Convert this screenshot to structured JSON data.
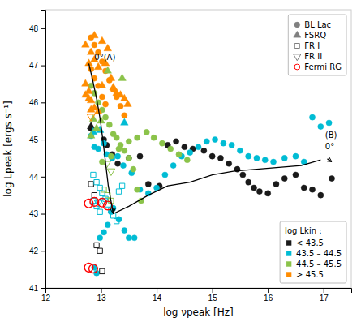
{
  "chart_data": {
    "type": "scatter",
    "x_label": "log νpeak [Hz]",
    "y_label": "log Lpeak [ergs s⁻¹]",
    "xlim": [
      12,
      17.5
    ],
    "ylim": [
      41,
      48.5
    ],
    "xticks": [
      12,
      13,
      14,
      15,
      16,
      17
    ],
    "yticks": [
      41,
      42,
      43,
      44,
      45,
      46,
      47,
      48
    ],
    "series": [
      {
        "type": "scatter",
        "marker": "circle",
        "color": "#1a1a1a",
        "x": [
          12.82,
          13.05,
          13.1,
          13.2,
          13.3,
          13.5,
          13.7,
          13.85,
          14.05,
          14.2,
          14.35,
          14.5,
          14.65,
          14.85,
          15.0,
          15.15,
          15.3,
          15.45,
          15.55,
          15.65,
          15.75,
          15.85,
          16.0,
          16.15,
          16.3,
          16.5,
          16.65,
          16.8,
          16.95,
          17.15
        ],
        "values": [
          45.3,
          45.0,
          44.85,
          44.6,
          44.35,
          44.5,
          44.55,
          43.8,
          43.75,
          44.85,
          44.95,
          44.8,
          44.75,
          44.7,
          44.55,
          44.5,
          44.35,
          44.2,
          44.05,
          43.85,
          43.7,
          43.6,
          43.55,
          43.8,
          43.95,
          44.05,
          43.7,
          43.65,
          43.5,
          43.95
        ]
      },
      {
        "type": "scatter",
        "marker": "circle",
        "color": "#00bcd4",
        "x": [
          12.82,
          12.88,
          12.95,
          13.05,
          13.1,
          13.2,
          13.3,
          13.4,
          13.55,
          13.7,
          13.85,
          14.0,
          14.15,
          14.3,
          14.45,
          14.6,
          14.75,
          14.9,
          15.05,
          15.2,
          15.35,
          15.5,
          15.65,
          15.8,
          15.95,
          16.1,
          16.3,
          16.5,
          16.65,
          16.8,
          16.95,
          17.1,
          12.88,
          12.92,
          12.98,
          13.05,
          13.12,
          13.18,
          13.22,
          13.32,
          13.42,
          13.5,
          13.6
        ],
        "values": [
          45.1,
          44.8,
          44.75,
          44.9,
          44.6,
          44.5,
          44.55,
          44.3,
          44.1,
          43.65,
          43.55,
          43.7,
          44.05,
          44.3,
          44.55,
          44.65,
          44.8,
          44.95,
          45.0,
          44.9,
          44.85,
          44.7,
          44.55,
          44.5,
          44.45,
          44.4,
          44.5,
          44.55,
          44.4,
          45.6,
          45.35,
          45.45,
          41.55,
          41.4,
          42.35,
          42.5,
          42.7,
          43.05,
          43.15,
          42.85,
          42.55,
          42.35,
          42.35
        ]
      },
      {
        "type": "scatter",
        "marker": "circle",
        "color": "#8bc34a",
        "x": [
          12.82,
          12.88,
          12.95,
          13.02,
          13.08,
          13.15,
          13.22,
          13.28,
          13.35,
          13.42,
          13.5,
          13.58,
          13.65,
          13.72,
          13.02,
          13.18,
          13.32,
          13.5,
          13.65,
          13.82,
          13.95,
          14.1,
          14.25,
          14.4,
          14.55
        ],
        "values": [
          46.45,
          46.25,
          46.0,
          45.8,
          45.6,
          45.4,
          45.15,
          45.05,
          44.85,
          44.7,
          44.5,
          44.2,
          43.65,
          43.35,
          44.4,
          44.55,
          44.75,
          44.95,
          45.05,
          45.2,
          45.05,
          44.9,
          44.75,
          44.6,
          44.45
        ]
      },
      {
        "type": "scatter",
        "marker": "circle",
        "color": "#ff8c00",
        "x": [
          12.82,
          12.88,
          12.95,
          13.02,
          13.08,
          13.15,
          13.22,
          13.28,
          13.35,
          13.42,
          12.82,
          12.88,
          12.95,
          13.02,
          13.08
        ],
        "values": [
          47.75,
          47.55,
          47.35,
          47.1,
          46.85,
          46.6,
          46.35,
          46.15,
          45.9,
          45.65,
          46.9,
          46.65,
          46.45,
          46.15,
          45.95
        ]
      },
      {
        "type": "scatter",
        "marker": "triangle-up",
        "color": "#1a1a1a",
        "x": [
          12.82
        ],
        "values": [
          45.35
        ]
      },
      {
        "type": "scatter",
        "marker": "triangle-up",
        "color": "#00bcd4",
        "x": [
          12.86,
          12.98,
          13.42
        ],
        "values": [
          45.2,
          45.25,
          45.45
        ]
      },
      {
        "type": "scatter",
        "marker": "triangle-up",
        "color": "#8bc34a",
        "x": [
          12.86,
          12.92,
          13.0,
          13.12,
          13.38,
          12.82
        ],
        "values": [
          45.55,
          45.3,
          45.5,
          46.85,
          46.65,
          45.1
        ]
      },
      {
        "type": "scatter",
        "marker": "triangle-up",
        "color": "#ff8c00",
        "x": [
          12.72,
          12.78,
          12.82,
          12.88,
          12.95,
          13.02,
          13.08,
          13.12,
          13.18,
          13.22,
          13.28,
          13.35,
          13.42,
          13.48,
          12.72,
          12.78,
          12.82,
          12.88,
          12.95,
          13.02,
          12.72,
          12.78,
          12.82,
          12.88
        ],
        "values": [
          47.55,
          47.05,
          47.35,
          47.15,
          46.95,
          47.65,
          47.05,
          47.45,
          46.65,
          46.4,
          46.25,
          46.2,
          46.1,
          45.95,
          46.5,
          46.3,
          46.05,
          45.85,
          45.75,
          46.45,
          46.2,
          46.1,
          45.8,
          47.8
        ]
      },
      {
        "type": "scatter",
        "marker": "square-open",
        "color": "#1a1a1a",
        "x": [
          12.92,
          12.98,
          13.02,
          12.82,
          12.88
        ],
        "values": [
          42.15,
          42.0,
          41.45,
          43.8,
          43.5
        ]
      },
      {
        "type": "scatter",
        "marker": "square-open",
        "color": "#00bcd4",
        "x": [
          12.86,
          12.92,
          12.98,
          13.02,
          13.08,
          13.12,
          13.18,
          13.22,
          13.28,
          12.86,
          12.92,
          12.98,
          13.32,
          13.38
        ],
        "values": [
          44.05,
          43.85,
          43.7,
          43.55,
          43.4,
          43.25,
          43.1,
          42.95,
          42.8,
          43.35,
          43.2,
          43.05,
          43.6,
          43.75
        ]
      },
      {
        "type": "scatter",
        "marker": "square-open",
        "color": "#8bc34a",
        "x": [
          13.05,
          13.12,
          13.18
        ],
        "values": [
          43.65,
          43.5,
          43.35
        ]
      },
      {
        "type": "scatter",
        "marker": "triangle-down-open",
        "color": "#00bcd4",
        "x": [
          12.95,
          13.05
        ],
        "values": [
          43.3,
          43.35
        ]
      },
      {
        "type": "scatter",
        "marker": "triangle-down-open",
        "color": "#8bc34a",
        "x": [
          13.1,
          13.18
        ],
        "values": [
          44.35,
          44.15
        ]
      },
      {
        "type": "scatter",
        "marker": "triangle-down-open",
        "color": "#ff8c00",
        "x": [
          12.82
        ],
        "values": [
          45.62
        ]
      },
      {
        "type": "scatter",
        "marker": "ring",
        "color": "red",
        "x": [
          12.78,
          12.88,
          13.02,
          13.12,
          12.78,
          12.86
        ],
        "values": [
          43.28,
          43.32,
          43.3,
          43.22,
          41.55,
          41.52
        ]
      },
      {
        "type": "line",
        "line_style": "solid",
        "color": "black",
        "x": [
          12.78,
          12.85,
          12.92,
          12.99,
          13.06,
          13.13,
          13.22
        ],
        "values": [
          47.05,
          46.6,
          46.1,
          45.5,
          44.65,
          43.75,
          43.0
        ]
      },
      {
        "type": "line",
        "line_style": "solid",
        "color": "black",
        "x": [
          13.22,
          13.5,
          13.85,
          14.2,
          14.6,
          15.0,
          15.4,
          15.8,
          16.2,
          16.6,
          16.95
        ],
        "values": [
          43.0,
          43.2,
          43.5,
          43.75,
          43.85,
          44.05,
          44.15,
          44.2,
          44.25,
          44.3,
          44.45
        ]
      }
    ],
    "arrows": [
      {
        "from_x": 13.21,
        "from_y": 43.15,
        "x": 13.22,
        "y": 43.0,
        "color": "black"
      },
      {
        "from_x": 17.07,
        "from_y": 44.48,
        "x": 17.15,
        "y": 44.4,
        "color": "black"
      }
    ],
    "annotations": [
      {
        "text": "0°(A)",
        "x": 12.88,
        "y": 47.15
      },
      {
        "text": "(B)",
        "x": 17.03,
        "y": 45.05
      },
      {
        "text": "0°",
        "x": 17.03,
        "y": 44.73
      }
    ],
    "shape_legend": {
      "legend": "upper right",
      "entries": [
        {
          "name": "BL Lac",
          "marker": "circle",
          "color": "gray"
        },
        {
          "name": "FSRQ",
          "marker": "triangle-up",
          "color": "gray"
        },
        {
          "name": "FR I",
          "marker": "square-open",
          "color": "gray"
        },
        {
          "name": "FR II",
          "marker": "triangle-down-open",
          "color": "gray"
        },
        {
          "name": "Fermi RG",
          "marker": "circle-open",
          "color": "red"
        }
      ]
    },
    "color_legend": {
      "legend": "lower right",
      "title": "log Lkin :",
      "entries": [
        {
          "name": "< 43.5",
          "marker": "square",
          "color": "#1a1a1a"
        },
        {
          "name": "43.5 – 44.5",
          "marker": "square",
          "color": "#00bcd4"
        },
        {
          "name": "44.5 – 45.5",
          "marker": "square",
          "color": "#8bc34a"
        },
        {
          "name": "> 45.5",
          "marker": "square",
          "color": "#ff8c00"
        }
      ]
    }
  }
}
